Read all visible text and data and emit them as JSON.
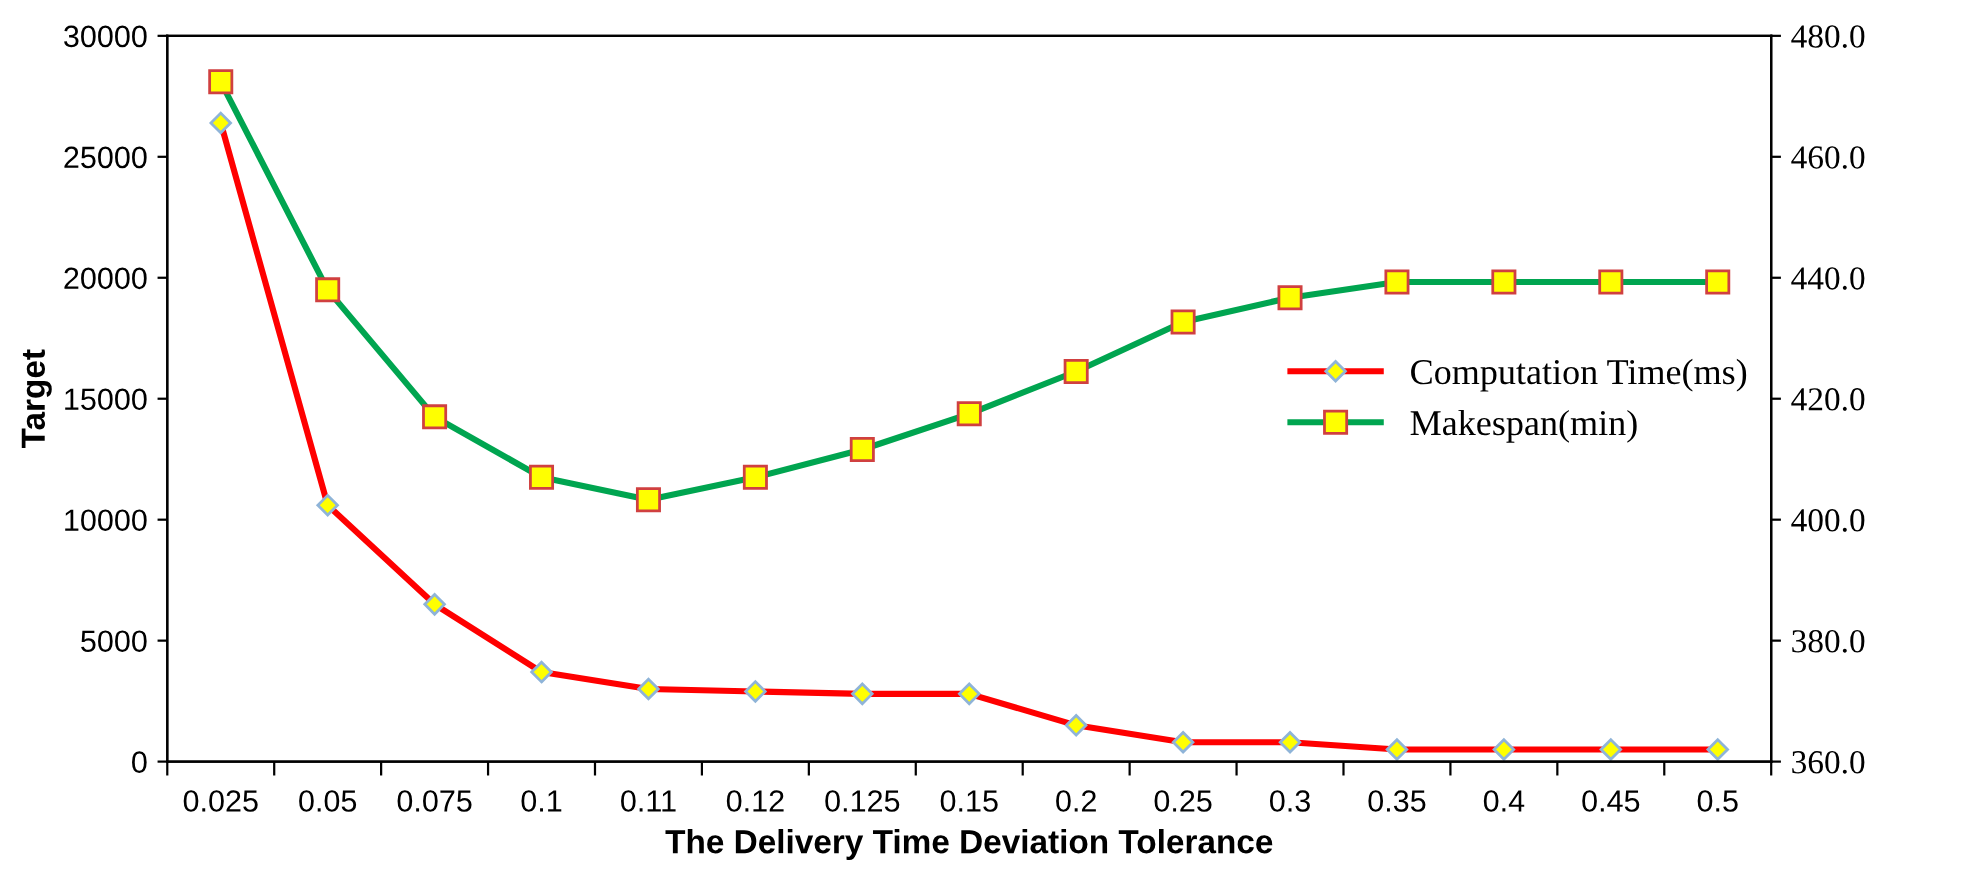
{
  "chart_data": {
    "type": "line",
    "xlabel": "The Delivery Time Deviation Tolerance",
    "ylabel": "Target",
    "categories": [
      "0.025",
      "0.05",
      "0.075",
      "0.1",
      "0.11",
      "0.12",
      "0.125",
      "0.15",
      "0.2",
      "0.25",
      "0.3",
      "0.35",
      "0.4",
      "0.45",
      "0.5"
    ],
    "series": [
      {
        "name": "Computation Time(ms)",
        "color": "#ff0000",
        "marker": "diamond",
        "values": [
          26400,
          10600,
          6500,
          3700,
          3000,
          2900,
          2800,
          2800,
          1500,
          800,
          800,
          500,
          500,
          500,
          500
        ]
      },
      {
        "name": "Makespan(min)",
        "color": "#00a550",
        "marker": "square",
        "axis": "y2",
        "values": [
          472.4,
          438,
          417,
          407,
          403.3,
          407,
          411.6,
          417.5,
          424.5,
          432.7,
          436.7,
          439.3,
          439.3,
          439.3,
          439.3
        ]
      }
    ],
    "ylim": [
      0,
      30000
    ],
    "yticks": [
      0,
      5000,
      10000,
      15000,
      20000,
      25000,
      30000
    ],
    "y2lim": [
      360,
      480
    ],
    "y2ticks": [
      {
        "value": 360,
        "label": "360.0"
      },
      {
        "value": 380,
        "label": "380.0"
      },
      {
        "value": 400,
        "label": "400.0"
      },
      {
        "value": 420,
        "label": "420.0"
      },
      {
        "value": 440,
        "label": "440.0"
      },
      {
        "value": 460,
        "label": "460.0"
      },
      {
        "value": 480,
        "label": "480.0"
      }
    ],
    "grid": false,
    "legend": "right"
  }
}
